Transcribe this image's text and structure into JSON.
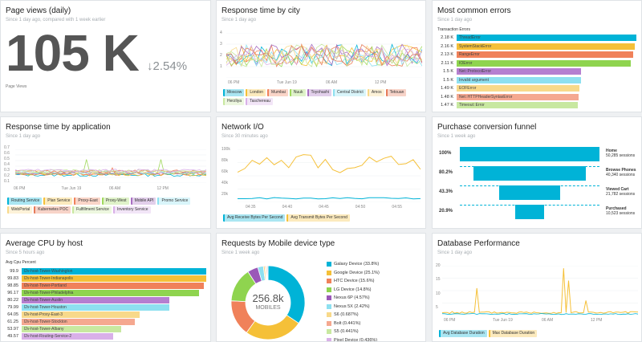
{
  "page_views": {
    "title": "Page views (daily)",
    "subtitle": "Since 1 day ago, compared with 1 week earlier",
    "value": "105 K",
    "delta": "2.54%",
    "label": "Page Views"
  },
  "response_city": {
    "title": "Response time by city",
    "subtitle": "Since 1 day ago",
    "y_ticks": [
      "4",
      "3",
      "2",
      "1"
    ],
    "x_ticks": [
      "06 PM",
      "Tue Jun 19",
      "06 AM",
      "12 PM"
    ],
    "legend": [
      {
        "label": "Moscow",
        "color": "#00b3d7"
      },
      {
        "label": "London",
        "color": "#f5c038"
      },
      {
        "label": "Mumbai",
        "color": "#f0815a"
      },
      {
        "label": "Nuuk",
        "color": "#a0d95d"
      },
      {
        "label": "Toyohashi",
        "color": "#a86ec2"
      },
      {
        "label": "Central District",
        "color": "#8ee0f0"
      },
      {
        "label": "Amos",
        "color": "#f8d98a"
      },
      {
        "label": "Tetouan",
        "color": "#e67b59"
      },
      {
        "label": "Herzliya",
        "color": "#c8e8a0"
      },
      {
        "label": "Taschereau",
        "color": "#d9b0e8"
      }
    ]
  },
  "common_errors": {
    "title": "Most common errors",
    "subtitle": "Since 1 day ago",
    "header": "Transaction Errors",
    "rows": [
      {
        "value": "2.18 K",
        "label": "ThreadError",
        "color": "#00b3d7",
        "pct": 1.0
      },
      {
        "value": "2.16 K",
        "label": "SystemStackError",
        "color": "#f5c038",
        "pct": 0.99
      },
      {
        "value": "2.13 K",
        "label": "RangeError",
        "color": "#f0815a",
        "pct": 0.98
      },
      {
        "value": "2.11 K",
        "label": "IOError",
        "color": "#8fd44f",
        "pct": 0.97
      },
      {
        "value": "1.5 K",
        "label": "Net::ProtocolError",
        "color": "#b57fd0",
        "pct": 0.69
      },
      {
        "value": "1.5 K",
        "label": "Invalid argument",
        "color": "#8ee0f0",
        "pct": 0.69
      },
      {
        "value": "1.49 K",
        "label": "EOFError",
        "color": "#f8d98a",
        "pct": 0.685
      },
      {
        "value": "1.48 K",
        "label": "Net::HTTPHeaderSyntaxError",
        "color": "#f5a890",
        "pct": 0.68
      },
      {
        "value": "1.47 K",
        "label": "Timeout::Error",
        "color": "#c8e8a0",
        "pct": 0.675
      }
    ]
  },
  "response_app": {
    "title": "Response time by application",
    "subtitle": "Since 1 day ago",
    "y_ticks": [
      "0.7",
      "0.6",
      "0.5",
      "0.4",
      "0.3",
      "0.2",
      "0.1"
    ],
    "x_ticks": [
      "06 PM",
      "Tue Jun 19",
      "06 AM",
      "12 PM"
    ],
    "legend": [
      {
        "label": "Routing Service",
        "color": "#00b3d7"
      },
      {
        "label": "Plan Service",
        "color": "#f5c038"
      },
      {
        "label": "Proxy-East",
        "color": "#f0815a"
      },
      {
        "label": "Proxy-West",
        "color": "#a0d95d"
      },
      {
        "label": "Mobile API",
        "color": "#a86ec2"
      },
      {
        "label": "Promo Service",
        "color": "#8ee0f0"
      },
      {
        "label": "WebPortal",
        "color": "#f8d98a"
      },
      {
        "label": "Kubernetes POC",
        "color": "#e67b59"
      },
      {
        "label": "Fulfillment Service",
        "color": "#c8e8a0"
      },
      {
        "label": "Inventory Service",
        "color": "#d9b0e8"
      }
    ]
  },
  "network_io": {
    "title": "Network I/O",
    "subtitle": "Since 30 minutes ago",
    "y_ticks": [
      "100k",
      "80k",
      "60k",
      "40k",
      "20k"
    ],
    "x_ticks": [
      "04:35",
      "04:40",
      "04:45",
      "04:50",
      "04:55"
    ],
    "legend": [
      {
        "label": "Avg Receive Bytes Per Second",
        "color": "#00b3d7"
      },
      {
        "label": "Avg Transmit Bytes Per Second",
        "color": "#f5c038"
      }
    ]
  },
  "funnel": {
    "title": "Purchase conversion funnel",
    "subtitle": "Since 1 week ago",
    "steps": [
      {
        "pct": "100%",
        "name": "Home",
        "sessions": "50,285 sessions",
        "ratio": 1.0
      },
      {
        "pct": "80.2%",
        "name": "Browse Phones",
        "sessions": "40,340 sessions",
        "ratio": 0.802
      },
      {
        "pct": "43.3%",
        "name": "Viewed Cart",
        "sessions": "21,782 sessions",
        "ratio": 0.433
      },
      {
        "pct": "20.9%",
        "name": "Purchased",
        "sessions": "10,523 sessions",
        "ratio": 0.209
      }
    ]
  },
  "cpu": {
    "title": "Average CPU by host",
    "subtitle": "Since 5 hours ago",
    "header": "Avg Cpu Percent",
    "rows": [
      {
        "value": "99.9",
        "label": "l2v-host-Tower-Washington",
        "color": "#00b3d7",
        "pct": 0.999
      },
      {
        "value": "99.83",
        "label": "l2v-host-Tower-Indianapolis",
        "color": "#f5c038",
        "pct": 0.998
      },
      {
        "value": "98.85",
        "label": "l2v-host-Tower-Portland",
        "color": "#f0815a",
        "pct": 0.989
      },
      {
        "value": "96.17",
        "label": "l2v-host-Tower-Philadelphia",
        "color": "#8fd44f",
        "pct": 0.962
      },
      {
        "value": "80.22",
        "label": "l2v-host-Tower-Austin",
        "color": "#b57fd0",
        "pct": 0.802
      },
      {
        "value": "79.99",
        "label": "l2v-host-Tower-Houston",
        "color": "#8ee0f0",
        "pct": 0.8
      },
      {
        "value": "64.05",
        "label": "l2v-host-Proxy-East-3",
        "color": "#f8d98a",
        "pct": 0.64
      },
      {
        "value": "61.25",
        "label": "l2v-host-Tower-Stockton",
        "color": "#f5a890",
        "pct": 0.612
      },
      {
        "value": "53.97",
        "label": "l2v-host-Tower-Albany",
        "color": "#c8e8a0",
        "pct": 0.54
      },
      {
        "value": "49.57",
        "label": "l2v-host-Routing-Service-2",
        "color": "#d9b0e8",
        "pct": 0.496
      }
    ]
  },
  "mobile": {
    "title": "Requests by Mobile device type",
    "subtitle": "Since 1 week ago",
    "center_value": "256.8k",
    "center_label": "MOBILES",
    "chart_data": {
      "type": "pie",
      "categories": [
        "Galaxy Device",
        "Google Device",
        "HTC Device",
        "LG Device",
        "Nexus 6P",
        "Nexus 5X",
        "S6",
        "Bolt",
        "S5",
        "Pixel Device"
      ],
      "values": [
        33.8,
        25.1,
        15.6,
        14.8,
        4.57,
        2.42,
        0.687,
        0.441,
        0.441,
        0.436
      ],
      "center": "256.8k MOBILES"
    },
    "legend": [
      {
        "label": "Galaxy Device (33.8%)",
        "color": "#00b3d7"
      },
      {
        "label": "Google Device (25.1%)",
        "color": "#f5c038"
      },
      {
        "label": "HTC Device (15.6%)",
        "color": "#f0815a"
      },
      {
        "label": "LG Device (14.8%)",
        "color": "#8fd44f"
      },
      {
        "label": "Nexus 6P (4.57%)",
        "color": "#9a58b8"
      },
      {
        "label": "Nexus 5X (2.42%)",
        "color": "#8ee0f0"
      },
      {
        "label": "S6 (0.687%)",
        "color": "#f8d98a"
      },
      {
        "label": "Bolt (0.441%)",
        "color": "#f5a890"
      },
      {
        "label": "S5 (0.441%)",
        "color": "#c8e8a0"
      },
      {
        "label": "Pixel Device (0.436%)",
        "color": "#d9b0e8"
      }
    ]
  },
  "db": {
    "title": "Database Performance",
    "subtitle": "Since 1 day ago",
    "y_ticks": [
      "20",
      "15",
      "10",
      "5"
    ],
    "x_ticks": [
      "06 PM",
      "Tue Jun 19",
      "06 AM",
      "12 PM"
    ],
    "legend": [
      {
        "label": "Avg Database Duration",
        "color": "#00b3d7"
      },
      {
        "label": "Max Database Duration",
        "color": "#f5c038"
      }
    ]
  }
}
